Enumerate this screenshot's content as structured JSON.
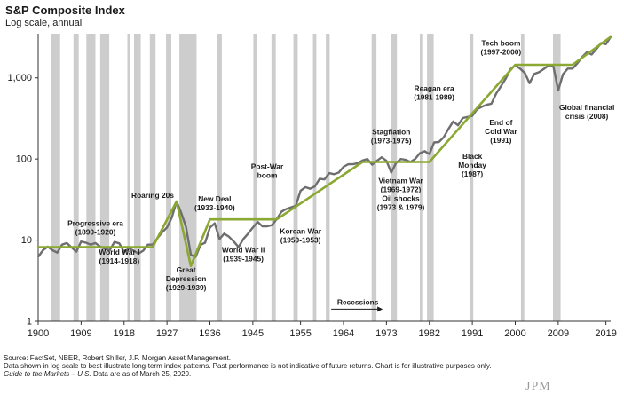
{
  "header": {
    "title": "S&P Composite Index",
    "subtitle": "Log scale, annual"
  },
  "footer": {
    "source": "Source: FactSet, NBER, Robert Shiller, J.P. Morgan Asset Management.",
    "note": "Data shown in log scale to best illustrate long-term index patterns. Past performance is not indicative of future returns. Chart is for illustrative purposes only.",
    "guide_title": "Guide to the Markets – U.S.",
    "date_note": " Data are as of March 25, 2020.",
    "logo_text": "JPM"
  },
  "colors": {
    "index_line": "#6e6e6e",
    "trend_line": "#8aa832",
    "recession_band": "#cdcdcd",
    "axis": "#333333"
  },
  "chart_data": {
    "type": "line",
    "title": "S&P Composite Index",
    "subtitle": "Log scale, annual",
    "xlim": [
      1900,
      2020
    ],
    "ylim": [
      1,
      3500
    ],
    "y_scale": "log",
    "x_ticks": [
      1900,
      1909,
      1918,
      1927,
      1936,
      1945,
      1955,
      1964,
      1973,
      1982,
      1991,
      2000,
      2009,
      2019
    ],
    "x_tick_labels": [
      "1900",
      "1909",
      "1918",
      "1927",
      "1936",
      "1945",
      "1955",
      "1964",
      "1973",
      "1982",
      "1991",
      "2000",
      "2009",
      "2019"
    ],
    "y_ticks": [
      1,
      10,
      100,
      1000
    ],
    "y_tick_labels": [
      "1",
      "10",
      "100",
      "1,000"
    ],
    "grid": false,
    "recessions": [
      [
        1902.7,
        1904.6
      ],
      [
        1907.4,
        1908.5
      ],
      [
        1910.1,
        1912.0
      ],
      [
        1913.0,
        1914.9
      ],
      [
        1918.7,
        1919.2
      ],
      [
        1920.1,
        1921.5
      ],
      [
        1923.4,
        1924.6
      ],
      [
        1926.8,
        1927.9
      ],
      [
        1929.6,
        1933.2
      ],
      [
        1937.4,
        1938.5
      ],
      [
        1945.1,
        1945.8
      ],
      [
        1948.9,
        1949.8
      ],
      [
        1953.5,
        1954.4
      ],
      [
        1957.6,
        1958.3
      ],
      [
        1960.3,
        1961.1
      ],
      [
        1969.9,
        1970.9
      ],
      [
        1973.9,
        1975.2
      ],
      [
        1980.0,
        1980.5
      ],
      [
        1981.5,
        1982.9
      ],
      [
        1990.5,
        1991.2
      ],
      [
        2001.2,
        2001.9
      ],
      [
        2007.9,
        2009.5
      ]
    ],
    "series": [
      {
        "type": "line",
        "x": [
          1900,
          1901,
          1902,
          1903,
          1904,
          1905,
          1906,
          1907,
          1908,
          1909,
          1910,
          1911,
          1912,
          1913,
          1914,
          1915,
          1916,
          1917,
          1918,
          1919,
          1920,
          1921,
          1922,
          1923,
          1924,
          1925,
          1926,
          1927,
          1928,
          1929,
          1930,
          1931,
          1932,
          1933,
          1934,
          1935,
          1936,
          1937,
          1938,
          1939,
          1940,
          1941,
          1942,
          1943,
          1944,
          1945,
          1946,
          1947,
          1948,
          1949,
          1950,
          1951,
          1952,
          1953,
          1954,
          1955,
          1956,
          1957,
          1958,
          1959,
          1960,
          1961,
          1962,
          1963,
          1964,
          1965,
          1966,
          1967,
          1968,
          1969,
          1970,
          1971,
          1972,
          1973,
          1974,
          1975,
          1976,
          1977,
          1978,
          1979,
          1980,
          1981,
          1982,
          1983,
          1984,
          1985,
          1986,
          1987,
          1988,
          1989,
          1990,
          1991,
          1992,
          1993,
          1994,
          1995,
          1996,
          1997,
          1998,
          1999,
          2000,
          2001,
          2002,
          2003,
          2004,
          2005,
          2006,
          2007,
          2008,
          2009,
          2010,
          2011,
          2012,
          2013,
          2014,
          2015,
          2016,
          2017,
          2018,
          2019,
          2020
        ],
        "values": [
          6.2,
          7.5,
          8.3,
          7.5,
          7.0,
          8.8,
          9.2,
          8.1,
          7.2,
          9.6,
          9.3,
          8.8,
          9.2,
          8.3,
          7.8,
          7.5,
          9.5,
          9.1,
          7.1,
          7.9,
          7.4,
          6.8,
          7.4,
          8.8,
          8.8,
          10.6,
          12.5,
          14.3,
          18.9,
          30.0,
          21.5,
          14.5,
          6.6,
          6.2,
          8.7,
          9.3,
          14.3,
          16.1,
          10.3,
          12.0,
          11.0,
          9.6,
          8.2,
          10.3,
          12.0,
          14.3,
          16.8,
          14.8,
          14.8,
          15.3,
          18.2,
          22.4,
          24.2,
          25.3,
          26.5,
          40.5,
          45.0,
          43.0,
          46.0,
          57.0,
          56.0,
          67.0,
          65.0,
          68.0,
          80.0,
          86.0,
          86.0,
          89.0,
          96.0,
          100.0,
          85.0,
          95.0,
          105.0,
          95.0,
          68.0,
          89.0,
          100.0,
          98.0,
          92.0,
          100.0,
          118.0,
          125.0,
          115.0,
          160.0,
          162.0,
          185.0,
          235.0,
          290.0,
          260.0,
          320.0,
          330.0,
          340.0,
          410.0,
          440.0,
          465.0,
          480.0,
          640.0,
          790.0,
          980.0,
          1280.0,
          1420.0,
          1300.0,
          1150.0,
          860.0,
          1120.0,
          1180.0,
          1290.0,
          1420.0,
          1380.0,
          700.0,
          1110.0,
          1300.0,
          1300.0,
          1510.0,
          1800.0,
          2060.0,
          1940.0,
          2270.0,
          2690.0,
          2600.0,
          3200.0
        ]
      },
      {
        "type": "trend",
        "x": [
          1900,
          1924,
          1929,
          1932,
          1936,
          1950,
          1968,
          1982,
          2000,
          2012,
          2020
        ],
        "values": [
          8.2,
          8.2,
          30.0,
          4.8,
          18.0,
          18.0,
          92.0,
          92.0,
          1450.0,
          1450.0,
          3200.0
        ]
      }
    ],
    "annotations": [
      {
        "text": "Progressive era",
        "sub": "(1890-1920)",
        "x": 1912,
        "y": 15
      },
      {
        "text": "Roaring 20s",
        "sub": "",
        "x": 1924,
        "y": 33
      },
      {
        "text": "World War I",
        "sub": "(1914-1918)",
        "x": 1917,
        "y": 6.6
      },
      {
        "text": "Great",
        "sub": "Depression",
        "sub2": "(1929-1939)",
        "x": 1931,
        "y": 4.0
      },
      {
        "text": "New Deal",
        "sub": "(1933-1940)",
        "x": 1937,
        "y": 30
      },
      {
        "text": "World War II",
        "sub": "(1939-1945)",
        "x": 1943,
        "y": 7.0
      },
      {
        "text": "Post-War",
        "sub": "boom",
        "x": 1948,
        "y": 75
      },
      {
        "text": "Korean War",
        "sub": "(1950-1953)",
        "x": 1955,
        "y": 12.0
      },
      {
        "text": "Stagflation",
        "sub": "(1973-1975)",
        "x": 1974,
        "y": 200
      },
      {
        "text": "Vietnam War",
        "sub": "(1969-1972)",
        "sub2": "Oil shocks",
        "sub3": "(1973 & 1979)",
        "x": 1976,
        "y": 50
      },
      {
        "text": "Reagan era",
        "sub": "(1981-1989)",
        "x": 1983,
        "y": 690
      },
      {
        "text": "Black",
        "sub": "Monday",
        "sub2": "(1987)",
        "x": 1991,
        "y": 100
      },
      {
        "text": "End of",
        "sub": "Cold War",
        "sub3": "(1991)",
        "x": 1997,
        "y": 260
      },
      {
        "text": "Tech boom",
        "sub": "(1997-2000)",
        "x": 1997,
        "y": 2500
      },
      {
        "text": "Global financial",
        "sub": "crisis (2008)",
        "x": 2015,
        "y": 400
      },
      {
        "text": "Recessions",
        "sub": "",
        "x": 1967,
        "y": 1.6
      }
    ]
  }
}
